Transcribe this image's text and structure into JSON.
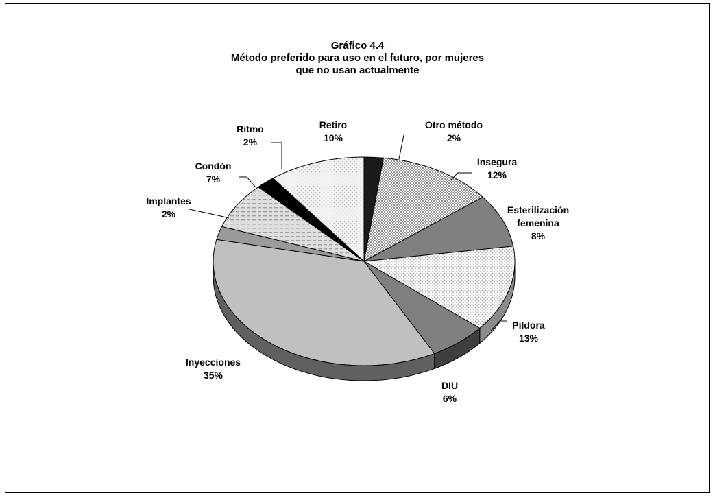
{
  "chart_data": {
    "type": "pie",
    "title": "Gráfico 4.4",
    "subtitle_lines": [
      "Método preferido para uso en el futuro, por mujeres",
      "que no usan actualmente"
    ],
    "unit": "%",
    "slices": [
      {
        "name": "Otro método",
        "label_lines": [
          "Otro método"
        ],
        "value": 2,
        "value_label": "2%",
        "fill": "#1a1a1a",
        "side": "#000000"
      },
      {
        "name": "Insegura",
        "label_lines": [
          "Insegura"
        ],
        "value": 12,
        "value_label": "12%",
        "fill": "#cfcfcf",
        "side": "#8a8a8a",
        "pattern": "checker"
      },
      {
        "name": "Esterilización femenina",
        "label_lines": [
          "Esterilización",
          "femenina"
        ],
        "value": 8,
        "value_label": "8%",
        "fill": "#808080",
        "side": "#555555"
      },
      {
        "name": "Píldora",
        "label_lines": [
          "Píldora"
        ],
        "value": 13,
        "value_label": "13%",
        "fill": "#f2f2f2",
        "side": "#8a8a8a",
        "pattern": "dots"
      },
      {
        "name": "DIU",
        "label_lines": [
          "DIU"
        ],
        "value": 6,
        "value_label": "6%",
        "fill": "#7f7f7f",
        "side": "#3f3f3f"
      },
      {
        "name": "Inyecciones",
        "label_lines": [
          "Inyecciones"
        ],
        "value": 35,
        "value_label": "35%",
        "fill": "#c0c0c0",
        "side": "#606060"
      },
      {
        "name": "Implantes",
        "label_lines": [
          "Implantes"
        ],
        "value": 2,
        "value_label": "2%",
        "fill": "#9a9a9a",
        "side": "#5a5a5a"
      },
      {
        "name": "Condón",
        "label_lines": [
          "Condón"
        ],
        "value": 7,
        "value_label": "7%",
        "fill": "#d9d9d9",
        "side": "#8a8a8a",
        "pattern": "dash"
      },
      {
        "name": "Ritmo",
        "label_lines": [
          "Ritmo"
        ],
        "value": 2,
        "value_label": "2%",
        "fill": "#000000",
        "side": "#000000"
      },
      {
        "name": "Retiro",
        "label_lines": [
          "Retiro"
        ],
        "value": 10,
        "value_label": "10%",
        "fill": "#ebebeb",
        "side": "#9a9a9a",
        "pattern": "sparse-dots"
      }
    ],
    "legend": "none",
    "start_angle_degrees": 270,
    "direction": "clockwise"
  }
}
